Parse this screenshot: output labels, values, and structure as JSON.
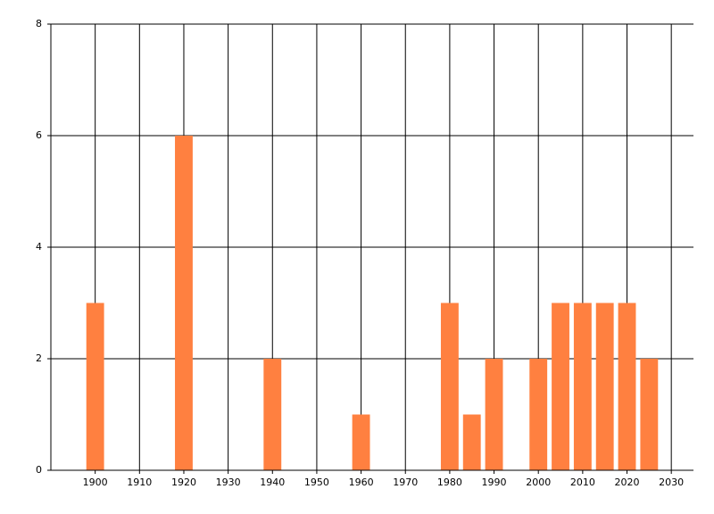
{
  "chart_data": {
    "type": "bar",
    "x": [
      1900,
      1920,
      1940,
      1960,
      1980,
      1985,
      1990,
      2000,
      2005,
      2010,
      2015,
      2020,
      2025
    ],
    "values": [
      3,
      6,
      2,
      1,
      3,
      1,
      2,
      2,
      3,
      3,
      3,
      3,
      2
    ],
    "color": "#ff8040",
    "xlim": [
      1890,
      2035
    ],
    "xticks": [
      1900,
      1910,
      1920,
      1930,
      1940,
      1950,
      1960,
      1970,
      1980,
      1990,
      2000,
      2010,
      2020,
      2030
    ],
    "ylim": [
      0,
      8
    ],
    "yticks": [
      0,
      2,
      4,
      6,
      8
    ],
    "grid": true
  }
}
